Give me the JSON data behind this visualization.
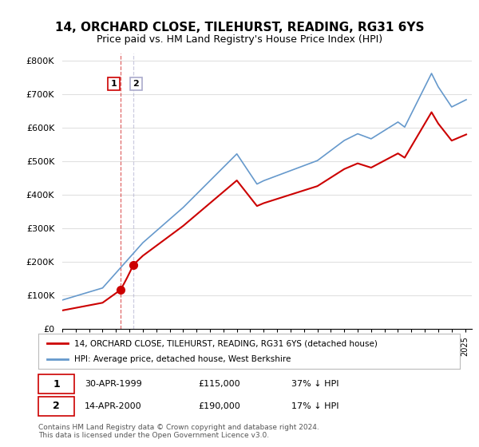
{
  "title": "14, ORCHARD CLOSE, TILEHURST, READING, RG31 6YS",
  "subtitle": "Price paid vs. HM Land Registry's House Price Index (HPI)",
  "legend_property": "14, ORCHARD CLOSE, TILEHURST, READING, RG31 6YS (detached house)",
  "legend_hpi": "HPI: Average price, detached house, West Berkshire",
  "footnote": "Contains HM Land Registry data © Crown copyright and database right 2024.\nThis data is licensed under the Open Government Licence v3.0.",
  "sale1_date": "30-APR-1999",
  "sale1_price": "£115,000",
  "sale1_hpi": "37% ↓ HPI",
  "sale2_date": "14-APR-2000",
  "sale2_price": "£190,000",
  "sale2_hpi": "17% ↓ HPI",
  "sale1_x": 1999.33,
  "sale1_y": 115000,
  "sale2_x": 2000.29,
  "sale2_y": 190000,
  "property_color": "#cc0000",
  "hpi_color": "#6699cc",
  "vline1_color": "#cc0000",
  "vline2_color": "#aaaacc",
  "background_color": "#ffffff",
  "grid_color": "#e0e0e0",
  "ylim": [
    0,
    820000
  ],
  "xlim_start": 1995.0,
  "xlim_end": 2025.5
}
